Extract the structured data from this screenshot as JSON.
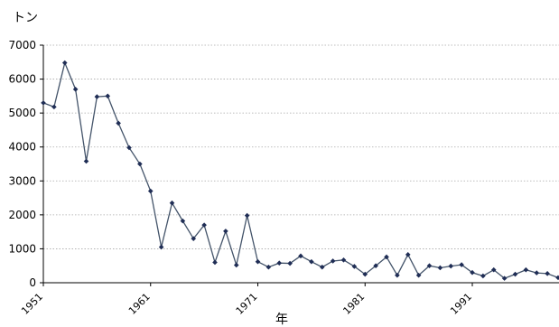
{
  "chart_data": {
    "type": "line",
    "ylabel": "トン",
    "xlabel": "年",
    "ylim": [
      0,
      7000
    ],
    "xlim": [
      1951,
      1999
    ],
    "yticks": [
      0,
      1000,
      2000,
      3000,
      4000,
      5000,
      6000,
      7000
    ],
    "xticks": [
      1951,
      1961,
      1971,
      1981,
      1991
    ],
    "grid": true,
    "legend": "none",
    "line_color": "#44546a",
    "marker_color": "#1f2d55",
    "series": [
      {
        "x": [
          1951,
          1952,
          1953,
          1954,
          1955,
          1956,
          1957,
          1958,
          1959,
          1960,
          1961,
          1962,
          1963,
          1964,
          1965,
          1966,
          1967,
          1968,
          1969,
          1970,
          1971,
          1972,
          1973,
          1974,
          1975,
          1976,
          1977,
          1978,
          1979,
          1980,
          1981,
          1982,
          1983,
          1984,
          1985,
          1986,
          1987,
          1988,
          1989,
          1990,
          1991,
          1992,
          1993,
          1994,
          1995,
          1996,
          1997,
          1998,
          1999
        ],
        "values": [
          5300,
          5180,
          6480,
          5700,
          3580,
          5480,
          5500,
          4700,
          3980,
          3500,
          2700,
          1050,
          2350,
          1820,
          1300,
          1700,
          600,
          1520,
          520,
          1980,
          620,
          460,
          580,
          570,
          790,
          620,
          460,
          640,
          670,
          480,
          250,
          500,
          760,
          220,
          830,
          220,
          500,
          440,
          490,
          530,
          300,
          200,
          380,
          130,
          250,
          380,
          290,
          270,
          150
        ]
      }
    ]
  }
}
